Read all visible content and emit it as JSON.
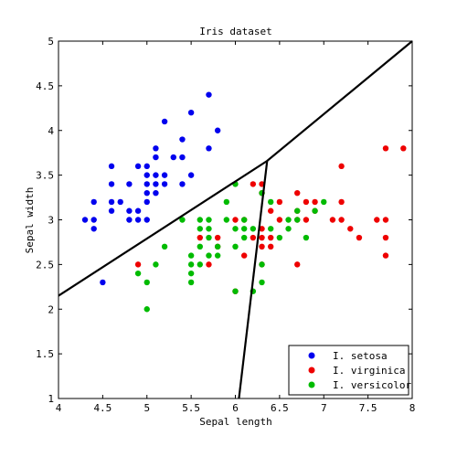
{
  "chart_data": {
    "type": "scatter",
    "title": "Iris dataset",
    "xlabel": "Sepal length",
    "ylabel": "Sepal width",
    "xlim": [
      4,
      8
    ],
    "ylim": [
      1,
      5
    ],
    "xticks": [
      "4",
      "4.5",
      "5",
      "5.5",
      "6",
      "6.5",
      "7",
      "7.5",
      "8"
    ],
    "yticks": [
      "1",
      "1.5",
      "2",
      "2.5",
      "3",
      "3.5",
      "4",
      "4.5",
      "5"
    ],
    "grid": false,
    "legend_position": "bottom-right",
    "series": [
      {
        "name": "I. setosa",
        "color": "#0000ee",
        "points": [
          [
            4.3,
            3.0
          ],
          [
            4.4,
            2.9
          ],
          [
            4.4,
            3.0
          ],
          [
            4.4,
            3.2
          ],
          [
            4.5,
            2.3
          ],
          [
            4.6,
            3.1
          ],
          [
            4.6,
            3.2
          ],
          [
            4.6,
            3.4
          ],
          [
            4.6,
            3.6
          ],
          [
            4.7,
            3.2
          ],
          [
            4.8,
            3.0
          ],
          [
            4.8,
            3.1
          ],
          [
            4.8,
            3.4
          ],
          [
            4.9,
            3.0
          ],
          [
            4.9,
            3.1
          ],
          [
            4.9,
            3.6
          ],
          [
            5.0,
            3.0
          ],
          [
            5.0,
            3.2
          ],
          [
            5.0,
            3.3
          ],
          [
            5.0,
            3.4
          ],
          [
            5.0,
            3.5
          ],
          [
            5.0,
            3.6
          ],
          [
            5.1,
            3.3
          ],
          [
            5.1,
            3.4
          ],
          [
            5.1,
            3.5
          ],
          [
            5.1,
            3.7
          ],
          [
            5.1,
            3.8
          ],
          [
            5.2,
            3.4
          ],
          [
            5.2,
            3.5
          ],
          [
            5.2,
            4.1
          ],
          [
            5.3,
            3.7
          ],
          [
            5.4,
            3.4
          ],
          [
            5.4,
            3.7
          ],
          [
            5.4,
            3.9
          ],
          [
            5.5,
            3.5
          ],
          [
            5.5,
            4.2
          ],
          [
            5.7,
            3.8
          ],
          [
            5.7,
            4.4
          ],
          [
            5.8,
            4.0
          ]
        ]
      },
      {
        "name": "I. virginica",
        "color": "#ee0000",
        "points": [
          [
            4.9,
            2.5
          ],
          [
            5.6,
            2.8
          ],
          [
            5.7,
            2.5
          ],
          [
            5.8,
            2.7
          ],
          [
            5.8,
            2.8
          ],
          [
            6.0,
            2.2
          ],
          [
            6.0,
            3.0
          ],
          [
            6.1,
            2.6
          ],
          [
            6.1,
            3.0
          ],
          [
            6.2,
            2.8
          ],
          [
            6.2,
            3.4
          ],
          [
            6.3,
            2.5
          ],
          [
            6.3,
            2.7
          ],
          [
            6.3,
            2.8
          ],
          [
            6.3,
            2.9
          ],
          [
            6.3,
            3.3
          ],
          [
            6.3,
            3.4
          ],
          [
            6.4,
            2.7
          ],
          [
            6.4,
            2.8
          ],
          [
            6.4,
            3.1
          ],
          [
            6.5,
            3.0
          ],
          [
            6.5,
            3.2
          ],
          [
            6.7,
            2.5
          ],
          [
            6.7,
            3.0
          ],
          [
            6.7,
            3.1
          ],
          [
            6.7,
            3.3
          ],
          [
            6.8,
            3.0
          ],
          [
            6.8,
            3.2
          ],
          [
            6.9,
            3.1
          ],
          [
            6.9,
            3.2
          ],
          [
            7.1,
            3.0
          ],
          [
            7.2,
            3.0
          ],
          [
            7.2,
            3.2
          ],
          [
            7.2,
            3.6
          ],
          [
            7.3,
            2.9
          ],
          [
            7.4,
            2.8
          ],
          [
            7.6,
            3.0
          ],
          [
            7.7,
            2.6
          ],
          [
            7.7,
            2.8
          ],
          [
            7.7,
            3.0
          ],
          [
            7.7,
            3.8
          ],
          [
            7.9,
            3.8
          ]
        ]
      },
      {
        "name": "I. versicolor",
        "color": "#00bb00",
        "points": [
          [
            4.9,
            2.4
          ],
          [
            5.0,
            2.0
          ],
          [
            5.0,
            2.3
          ],
          [
            5.1,
            2.5
          ],
          [
            5.2,
            2.7
          ],
          [
            5.4,
            3.0
          ],
          [
            5.5,
            2.3
          ],
          [
            5.5,
            2.4
          ],
          [
            5.5,
            2.5
          ],
          [
            5.5,
            2.6
          ],
          [
            5.6,
            2.5
          ],
          [
            5.6,
            2.7
          ],
          [
            5.6,
            2.9
          ],
          [
            5.6,
            3.0
          ],
          [
            5.7,
            2.6
          ],
          [
            5.7,
            2.8
          ],
          [
            5.7,
            2.9
          ],
          [
            5.7,
            3.0
          ],
          [
            5.8,
            2.6
          ],
          [
            5.8,
            2.7
          ],
          [
            5.9,
            3.0
          ],
          [
            5.9,
            3.2
          ],
          [
            6.0,
            2.2
          ],
          [
            6.0,
            2.7
          ],
          [
            6.0,
            2.9
          ],
          [
            6.0,
            3.4
          ],
          [
            6.1,
            2.8
          ],
          [
            6.1,
            2.9
          ],
          [
            6.1,
            3.0
          ],
          [
            6.2,
            2.2
          ],
          [
            6.2,
            2.9
          ],
          [
            6.3,
            2.3
          ],
          [
            6.3,
            2.5
          ],
          [
            6.3,
            3.3
          ],
          [
            6.4,
            2.9
          ],
          [
            6.4,
            3.2
          ],
          [
            6.5,
            2.8
          ],
          [
            6.6,
            2.9
          ],
          [
            6.6,
            3.0
          ],
          [
            6.7,
            3.0
          ],
          [
            6.7,
            3.1
          ],
          [
            6.8,
            2.8
          ],
          [
            6.9,
            3.1
          ],
          [
            7.0,
            3.2
          ]
        ]
      }
    ],
    "boundaries": [
      {
        "points": [
          [
            4.0,
            2.15
          ],
          [
            6.36,
            3.66
          ],
          [
            8.0,
            5.0
          ]
        ]
      },
      {
        "points": [
          [
            6.36,
            3.66
          ],
          [
            6.04,
            1.0
          ]
        ]
      }
    ]
  }
}
